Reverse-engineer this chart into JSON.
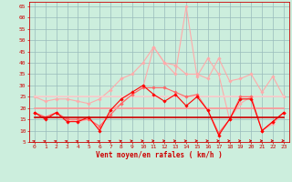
{
  "x": [
    0,
    1,
    2,
    3,
    4,
    5,
    6,
    7,
    8,
    9,
    10,
    11,
    12,
    13,
    14,
    15,
    16,
    17,
    18,
    19,
    20,
    21,
    22,
    23
  ],
  "series": [
    {
      "name": "peak_light",
      "color": "#ffaaaa",
      "linewidth": 0.8,
      "marker": "D",
      "markersize": 1.8,
      "y": [
        18,
        16,
        18,
        15,
        14,
        15,
        11,
        19,
        22,
        26,
        29,
        47,
        40,
        35,
        65,
        34,
        42,
        35,
        15,
        22,
        25,
        10,
        13,
        18
      ]
    },
    {
      "name": "rafales_light1",
      "color": "#ffaaaa",
      "linewidth": 0.8,
      "marker": "D",
      "markersize": 1.8,
      "y": [
        25,
        23,
        24,
        24,
        23,
        22,
        24,
        28,
        33,
        35,
        40,
        47,
        40,
        39,
        35,
        35,
        33,
        42,
        32,
        33,
        35,
        27,
        34,
        25
      ]
    },
    {
      "name": "moyen_light1",
      "color": "#ffcccc",
      "linewidth": 1.2,
      "marker": null,
      "markersize": 0,
      "y": [
        25,
        25,
        25,
        25,
        25,
        25,
        25,
        25,
        25,
        25,
        25,
        25,
        25,
        25,
        25,
        25,
        25,
        25,
        25,
        25,
        25,
        25,
        25,
        25
      ]
    },
    {
      "name": "rafales_medium",
      "color": "#ff6666",
      "linewidth": 0.8,
      "marker": "D",
      "markersize": 1.8,
      "y": [
        18,
        16,
        18,
        15,
        15,
        15,
        12,
        17,
        22,
        26,
        29,
        29,
        29,
        27,
        25,
        26,
        19,
        9,
        15,
        25,
        25,
        10,
        14,
        18
      ]
    },
    {
      "name": "moyen_medium",
      "color": "#ff9999",
      "linewidth": 1.2,
      "marker": null,
      "markersize": 0,
      "y": [
        20,
        20,
        20,
        20,
        20,
        20,
        20,
        20,
        20,
        20,
        20,
        20,
        20,
        20,
        20,
        20,
        20,
        20,
        20,
        20,
        20,
        20,
        20,
        20
      ]
    },
    {
      "name": "rafales_bold",
      "color": "#ff0000",
      "linewidth": 0.8,
      "marker": "D",
      "markersize": 1.8,
      "y": [
        18,
        15,
        18,
        14,
        14,
        16,
        10,
        19,
        24,
        27,
        30,
        26,
        23,
        26,
        21,
        25,
        19,
        8,
        15,
        24,
        24,
        10,
        14,
        18
      ]
    },
    {
      "name": "moyen_bold",
      "color": "#cc0000",
      "linewidth": 1.2,
      "marker": null,
      "markersize": 0,
      "y": [
        16,
        16,
        16,
        16,
        16,
        16,
        16,
        16,
        16,
        16,
        16,
        16,
        16,
        16,
        16,
        16,
        16,
        16,
        16,
        16,
        16,
        16,
        16,
        16
      ]
    }
  ],
  "arrow_angles": [
    45,
    45,
    45,
    45,
    45,
    45,
    45,
    30,
    20,
    10,
    5,
    5,
    5,
    5,
    5,
    0,
    0,
    0,
    0,
    0,
    0,
    0,
    355,
    350
  ],
  "xlabel": "Vent moyen/en rafales ( km/h )",
  "ylim": [
    5,
    67
  ],
  "xlim": [
    -0.5,
    23.5
  ],
  "yticks": [
    5,
    10,
    15,
    20,
    25,
    30,
    35,
    40,
    45,
    50,
    55,
    60,
    65
  ],
  "xticks": [
    0,
    1,
    2,
    3,
    4,
    5,
    6,
    7,
    8,
    9,
    10,
    11,
    12,
    13,
    14,
    15,
    16,
    17,
    18,
    19,
    20,
    21,
    22,
    23
  ],
  "bg_color": "#cceedd",
  "grid_color": "#99bbbb",
  "axis_color": "#cc0000",
  "arrow_color": "#cc0000"
}
